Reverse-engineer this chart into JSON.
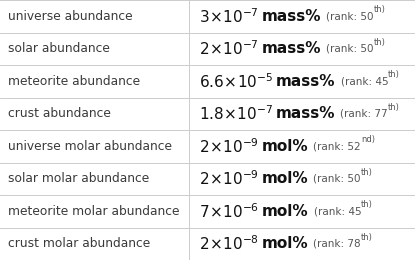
{
  "rows": [
    {
      "label": "universe abundance",
      "coeff": "3",
      "exp": "-7",
      "unit": "mass%",
      "rank": "50",
      "rank_sup": "th"
    },
    {
      "label": "solar abundance",
      "coeff": "2",
      "exp": "-7",
      "unit": "mass%",
      "rank": "50",
      "rank_sup": "th"
    },
    {
      "label": "meteorite abundance",
      "coeff": "6.6",
      "exp": "-5",
      "unit": "mass%",
      "rank": "45",
      "rank_sup": "th"
    },
    {
      "label": "crust abundance",
      "coeff": "1.8",
      "exp": "-7",
      "unit": "mass%",
      "rank": "77",
      "rank_sup": "th"
    },
    {
      "label": "universe molar abundance",
      "coeff": "2",
      "exp": "-9",
      "unit": "mol%",
      "rank": "52",
      "rank_sup": "nd"
    },
    {
      "label": "solar molar abundance",
      "coeff": "2",
      "exp": "-9",
      "unit": "mol%",
      "rank": "50",
      "rank_sup": "th"
    },
    {
      "label": "meteorite molar abundance",
      "coeff": "7",
      "exp": "-6",
      "unit": "mol%",
      "rank": "45",
      "rank_sup": "th"
    },
    {
      "label": "crust molar abundance",
      "coeff": "2",
      "exp": "-8",
      "unit": "mol%",
      "rank": "78",
      "rank_sup": "th"
    }
  ],
  "col_split": 0.455,
  "bg_color": "#ffffff",
  "line_color": "#cccccc",
  "label_color": "#3a3a3a",
  "value_color": "#111111",
  "rank_color": "#555555",
  "label_fontsize": 8.8,
  "value_fontsize": 9.5,
  "rank_fontsize": 7.5
}
